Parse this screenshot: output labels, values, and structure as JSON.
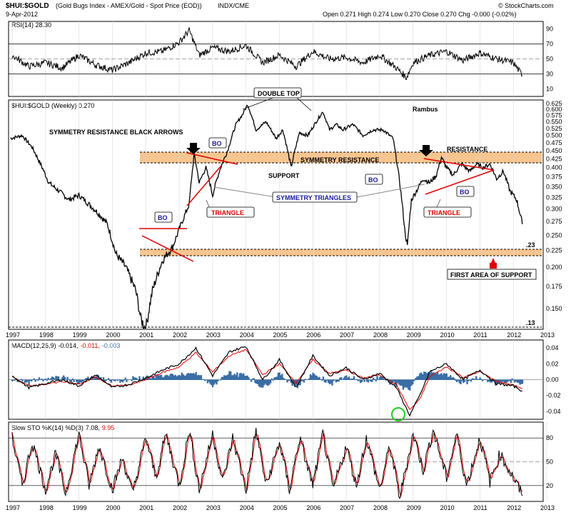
{
  "header": {
    "symbol": "$HUI:$GOLD",
    "description": "(Gold Bugs Index - AMEX/Gold - Spot Price (EOD))",
    "exchange": "INDX/CME",
    "date": "9-Apr-2012",
    "quote": "Open 0.271  High 0.274  Low 0.270  Close 0.270  Chg -0.000 (-0.02%)",
    "watermark": "© StockCharts.com"
  },
  "panels": {
    "rsi": {
      "title": "RSI(14) 28.30",
      "ticks": [
        "90",
        "70",
        "50",
        "30",
        "10"
      ]
    },
    "price": {
      "title": "$HUI:$GOLD (Weekly) 0.270",
      "ticks": [
        "0.625",
        "0.600",
        "0.575",
        "0.550",
        "0.525",
        "0.500",
        "0.475",
        "0.450",
        "0.425",
        "0.400",
        "0.375",
        "0.350",
        "0.325",
        "0.300",
        "0.275",
        "0.250",
        "0.225",
        "0.200",
        "0.175",
        "0.150"
      ]
    },
    "macd": {
      "title_prefix": "MACD(12,26,9)",
      "v1": "-0.014,",
      "v2": "-0.011,",
      "v3": "-0.003",
      "ticks": [
        "0.04",
        "0.02",
        "0.00",
        "-0.02",
        "-0.04"
      ]
    },
    "sto": {
      "title_prefix": "Slow STO %K(14) %D(3)",
      "v1": "7.08,",
      "v2": "9.95",
      "ticks": [
        "80",
        "50",
        "20"
      ]
    }
  },
  "annotations": {
    "symmetry_arrows": "SYMMETRY RESISTANCE BLACK ARROWS",
    "double_top": "DOUBLE TOP",
    "rambus": "Rambus",
    "resistance": "RESISTANCE",
    "symmetry_resistance": "SYMMETRY RESISTANCE",
    "support": "SUPPORT",
    "symmetry_triangles": "SYMMETRY TRIANGLES",
    "triangle": "TRIANGLE",
    "bo": "BO",
    "first_support": "FIRST AREA OF SUPPORT",
    "level_23": ".23",
    "level_13": ".13"
  },
  "x_axis": [
    "1997",
    "1998",
    "1999",
    "2000",
    "2001",
    "2002",
    "2003",
    "2004",
    "2005",
    "2006",
    "2007",
    "2008",
    "2009",
    "2010",
    "2011",
    "2012",
    "2013"
  ],
  "colors": {
    "band": "#f7c58f",
    "red": "#e00000",
    "blue": "#1a1aa0",
    "macd_hist": "#3a6ea5",
    "green_circle": "#22cc22"
  },
  "chart_data": [
    {
      "type": "line",
      "title": "$HUI:$GOLD (Weekly) 0.270",
      "x_range": [
        1997,
        2013
      ],
      "ylim": [
        0.13,
        0.64
      ],
      "y_scale": "log",
      "x": [
        1996.95,
        1997.3,
        1997.6,
        1997.9,
        1998.1,
        1998.4,
        1998.7,
        1999.0,
        1999.3,
        1999.6,
        1999.85,
        2000.1,
        2000.4,
        2000.7,
        2000.85,
        2001.0,
        2001.2,
        2001.5,
        2001.8,
        2002.0,
        2002.3,
        2002.45,
        2002.6,
        2002.8,
        2003.0,
        2003.2,
        2003.45,
        2003.7,
        2003.9,
        2004.05,
        2004.3,
        2004.6,
        2004.9,
        2005.1,
        2005.35,
        2005.6,
        2005.85,
        2006.1,
        2006.3,
        2006.5,
        2006.7,
        2006.9,
        2007.2,
        2007.5,
        2007.8,
        2008.1,
        2008.4,
        2008.6,
        2008.75,
        2008.83,
        2008.95,
        2009.1,
        2009.3,
        2009.5,
        2009.7,
        2009.85,
        2010.0,
        2010.2,
        2010.45,
        2010.7,
        2010.9,
        2011.1,
        2011.3,
        2011.5,
        2011.7,
        2011.9,
        2012.1,
        2012.27
      ],
      "values": [
        0.49,
        0.5,
        0.46,
        0.4,
        0.36,
        0.34,
        0.32,
        0.33,
        0.31,
        0.29,
        0.27,
        0.22,
        0.2,
        0.17,
        0.14,
        0.13,
        0.17,
        0.21,
        0.23,
        0.26,
        0.31,
        0.44,
        0.36,
        0.4,
        0.33,
        0.39,
        0.45,
        0.54,
        0.58,
        0.62,
        0.52,
        0.55,
        0.49,
        0.52,
        0.4,
        0.51,
        0.5,
        0.55,
        0.59,
        0.52,
        0.54,
        0.52,
        0.54,
        0.5,
        0.52,
        0.52,
        0.49,
        0.36,
        0.26,
        0.23,
        0.32,
        0.34,
        0.37,
        0.36,
        0.38,
        0.43,
        0.4,
        0.38,
        0.41,
        0.39,
        0.41,
        0.4,
        0.41,
        0.37,
        0.39,
        0.34,
        0.32,
        0.27
      ]
    },
    {
      "type": "line",
      "title": "RSI(14) 28.30",
      "x_range": [
        1997,
        2013
      ],
      "ylim": [
        0,
        100
      ],
      "x": [
        1997,
        1997.5,
        1998,
        1998.5,
        1999,
        1999.5,
        2000,
        2000.5,
        2001,
        2001.5,
        2002,
        2002.3,
        2002.6,
        2003,
        2003.5,
        2004,
        2004.5,
        2005,
        2005.5,
        2006,
        2006.5,
        2007,
        2007.5,
        2008,
        2008.5,
        2008.8,
        2009,
        2009.5,
        2010,
        2010.5,
        2011,
        2011.5,
        2012,
        2012.27
      ],
      "values": [
        55,
        40,
        45,
        38,
        55,
        42,
        35,
        45,
        58,
        60,
        72,
        88,
        55,
        65,
        60,
        68,
        45,
        55,
        40,
        60,
        50,
        52,
        45,
        55,
        38,
        25,
        45,
        55,
        60,
        48,
        58,
        50,
        45,
        28
      ]
    },
    {
      "type": "line",
      "title": "MACD(12,26,9)",
      "x_range": [
        1997,
        2013
      ],
      "ylim": [
        -0.05,
        0.05
      ],
      "series": [
        {
          "name": "-0.014",
          "x": [
            1997,
            1997.5,
            1998,
            1998.5,
            1999,
            1999.5,
            2000,
            2000.5,
            2001,
            2001.5,
            2002,
            2002.5,
            2003,
            2003.5,
            2004,
            2004.5,
            2005,
            2005.5,
            2006,
            2006.5,
            2007,
            2007.5,
            2008,
            2008.5,
            2008.9,
            2009.2,
            2009.5,
            2010,
            2010.5,
            2011,
            2011.5,
            2012,
            2012.27
          ],
          "values": [
            0.005,
            -0.01,
            -0.005,
            0.0,
            -0.008,
            0.006,
            -0.01,
            -0.006,
            0.002,
            0.012,
            0.02,
            0.04,
            0.005,
            0.035,
            0.042,
            0.0,
            0.025,
            -0.01,
            0.03,
            0.005,
            0.015,
            0.0,
            0.008,
            -0.01,
            -0.045,
            -0.02,
            0.01,
            0.02,
            0.0,
            0.012,
            -0.005,
            -0.008,
            -0.014
          ]
        },
        {
          "name": "-0.011",
          "x": [
            1997,
            1997.5,
            1998,
            1998.5,
            1999,
            1999.5,
            2000,
            2000.5,
            2001,
            2001.5,
            2002,
            2002.5,
            2003,
            2003.5,
            2004,
            2004.5,
            2005,
            2005.5,
            2006,
            2006.5,
            2007,
            2007.5,
            2008,
            2008.5,
            2008.9,
            2009.2,
            2009.5,
            2010,
            2010.5,
            2011,
            2011.5,
            2012,
            2012.27
          ],
          "values": [
            0.004,
            -0.008,
            -0.006,
            -0.002,
            -0.006,
            0.003,
            -0.008,
            -0.007,
            0.0,
            0.009,
            0.016,
            0.034,
            0.01,
            0.03,
            0.038,
            0.006,
            0.02,
            -0.004,
            0.025,
            0.008,
            0.012,
            0.002,
            0.006,
            -0.006,
            -0.038,
            -0.025,
            0.004,
            0.016,
            0.003,
            0.01,
            -0.002,
            -0.007,
            -0.011
          ]
        }
      ]
    },
    {
      "type": "line",
      "title": "Slow STO %K(14) %D(3)",
      "x_range": [
        1997,
        2013
      ],
      "ylim": [
        0,
        100
      ],
      "x": [
        1997,
        1997.3,
        1997.6,
        1998,
        1998.3,
        1998.6,
        1999,
        1999.3,
        1999.6,
        2000,
        2000.3,
        2000.6,
        2001,
        2001.3,
        2001.6,
        2002,
        2002.3,
        2002.6,
        2003,
        2003.3,
        2003.6,
        2004,
        2004.3,
        2004.6,
        2005,
        2005.3,
        2005.6,
        2006,
        2006.3,
        2006.6,
        2007,
        2007.3,
        2007.6,
        2008,
        2008.3,
        2008.6,
        2009,
        2009.3,
        2009.6,
        2010,
        2010.3,
        2010.6,
        2011,
        2011.3,
        2011.6,
        2012,
        2012.27
      ],
      "values": [
        80,
        20,
        75,
        15,
        60,
        10,
        85,
        20,
        70,
        15,
        55,
        10,
        80,
        30,
        85,
        20,
        90,
        15,
        85,
        25,
        80,
        15,
        90,
        20,
        75,
        15,
        80,
        20,
        85,
        15,
        70,
        20,
        80,
        15,
        70,
        5,
        85,
        40,
        90,
        30,
        85,
        20,
        80,
        25,
        60,
        30,
        7
      ]
    }
  ]
}
